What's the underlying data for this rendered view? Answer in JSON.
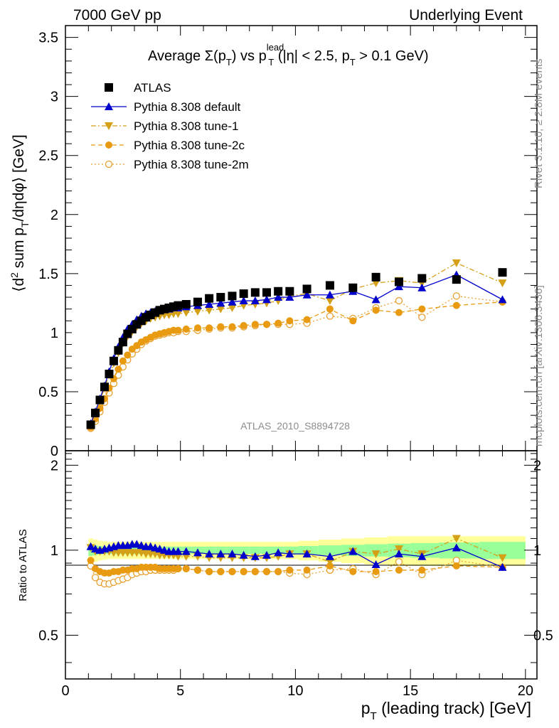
{
  "header": {
    "left": "7000 GeV pp",
    "right": "Underlying Event"
  },
  "side_text": {
    "rivet": "Rivet 3.1.10, ≥ 2.8M events",
    "mcplots": "mcplots.cern.ch [arXiv:1306.3436]"
  },
  "chart_data": [
    {
      "type": "scatter",
      "panel": "main",
      "title": "Average Σ(p_T) vs p_T^lead (|η| < 2.5, p_T > 0.1 GeV)",
      "title_parts": {
        "a": "Average ",
        "sigma": "Σ(p",
        "sub1": "T",
        "mid": ") vs p",
        "sup": "lead",
        "sub2": "T",
        "rest": " (|η| < 2.5, p",
        "sub3": "T",
        "end": " > 0.1 GeV)"
      },
      "ylabel": "⟨d² sum p_T/dηdφ⟩ [GeV]",
      "ylabel_parts": {
        "a": "⟨d",
        "sup": "2",
        "b": " sum p",
        "sub": "T",
        "c": "/dηdφ⟩ [GeV]"
      },
      "analysis_label": "ATLAS_2010_S8894728",
      "xlim": [
        0,
        20.5
      ],
      "ylim": [
        0,
        3.6
      ],
      "y_ticks": [
        "0",
        "0.5",
        "1",
        "1.5",
        "2",
        "2.5",
        "3",
        "3.5"
      ],
      "legend_position": "top-left",
      "x": [
        1.1,
        1.3,
        1.5,
        1.7,
        1.9,
        2.1,
        2.3,
        2.5,
        2.7,
        2.9,
        3.1,
        3.3,
        3.5,
        3.7,
        3.9,
        4.1,
        4.3,
        4.5,
        4.7,
        4.9,
        5.25,
        5.75,
        6.25,
        6.75,
        7.25,
        7.75,
        8.25,
        8.75,
        9.25,
        9.75,
        10.5,
        11.5,
        12.5,
        13.5,
        14.5,
        15.5,
        17.0,
        19.0
      ],
      "series": [
        {
          "name": "ATLAS",
          "color": "#000000",
          "marker": "square",
          "line": "none",
          "values": [
            0.22,
            0.32,
            0.43,
            0.54,
            0.65,
            0.76,
            0.85,
            0.92,
            0.99,
            1.03,
            1.07,
            1.1,
            1.13,
            1.15,
            1.17,
            1.19,
            1.2,
            1.21,
            1.22,
            1.23,
            1.24,
            1.26,
            1.29,
            1.3,
            1.31,
            1.33,
            1.34,
            1.34,
            1.35,
            1.35,
            1.37,
            1.4,
            1.38,
            1.47,
            1.43,
            1.46,
            1.45,
            1.51
          ]
        },
        {
          "name": "Pythia 8.308 default",
          "color": "#0000cc",
          "marker": "triangle-up",
          "line": "solid",
          "values": [
            0.23,
            0.33,
            0.44,
            0.55,
            0.67,
            0.78,
            0.88,
            0.96,
            1.03,
            1.07,
            1.11,
            1.14,
            1.16,
            1.17,
            1.18,
            1.19,
            1.2,
            1.2,
            1.21,
            1.21,
            1.22,
            1.23,
            1.24,
            1.25,
            1.26,
            1.27,
            1.27,
            1.28,
            1.3,
            1.3,
            1.32,
            1.32,
            1.35,
            1.28,
            1.39,
            1.38,
            1.49,
            1.28
          ]
        },
        {
          "name": "Pythia 8.308 tune-1",
          "color": "#d4a017",
          "marker": "triangle-down",
          "line": "dashdot",
          "values": [
            0.22,
            0.31,
            0.42,
            0.53,
            0.64,
            0.74,
            0.83,
            0.91,
            0.97,
            1.01,
            1.05,
            1.08,
            1.1,
            1.12,
            1.13,
            1.14,
            1.15,
            1.15,
            1.16,
            1.16,
            1.17,
            1.18,
            1.19,
            1.2,
            1.21,
            1.23,
            1.24,
            1.25,
            1.27,
            1.31,
            1.33,
            1.27,
            1.37,
            1.42,
            1.44,
            1.42,
            1.59,
            1.42
          ]
        },
        {
          "name": "Pythia 8.308 tune-2c",
          "color": "#e89a10",
          "marker": "circle",
          "line": "dashed",
          "values": [
            0.2,
            0.27,
            0.36,
            0.44,
            0.53,
            0.61,
            0.69,
            0.76,
            0.81,
            0.86,
            0.89,
            0.92,
            0.94,
            0.96,
            0.98,
            0.99,
            1.0,
            1.01,
            1.02,
            1.02,
            1.03,
            1.04,
            1.04,
            1.05,
            1.05,
            1.06,
            1.07,
            1.07,
            1.08,
            1.1,
            1.11,
            1.2,
            1.1,
            1.19,
            1.17,
            1.2,
            1.23,
            1.26
          ]
        },
        {
          "name": "Pythia 8.308 tune-2m",
          "color": "#e8a030",
          "marker": "circle-open",
          "line": "dotted",
          "values": [
            0.19,
            0.25,
            0.33,
            0.41,
            0.49,
            0.57,
            0.64,
            0.71,
            0.77,
            0.82,
            0.86,
            0.9,
            0.93,
            0.95,
            0.97,
            0.98,
            0.99,
            1.0,
            1.0,
            1.01,
            1.01,
            1.02,
            1.03,
            1.04,
            1.04,
            1.05,
            1.06,
            1.07,
            1.07,
            1.07,
            1.08,
            1.14,
            1.12,
            1.21,
            1.27,
            1.13,
            1.31,
            1.26
          ]
        }
      ]
    },
    {
      "type": "scatter",
      "panel": "ratio",
      "ylabel": "Ratio to ATLAS",
      "xlabel": "p_T (leading track) [GeV]",
      "xlabel_parts": {
        "a": "p",
        "sub": "T",
        "b": " (leading track) [GeV]"
      },
      "xlim": [
        0,
        20.5
      ],
      "ylim": [
        0.35,
        2.25
      ],
      "y_ticks": [
        "0.5",
        "1",
        "2"
      ],
      "x_ticks": [
        "0",
        "5",
        "10",
        "15",
        "20"
      ],
      "x": [
        1.1,
        1.3,
        1.5,
        1.7,
        1.9,
        2.1,
        2.3,
        2.5,
        2.7,
        2.9,
        3.1,
        3.3,
        3.5,
        3.7,
        3.9,
        4.1,
        4.3,
        4.5,
        4.7,
        4.9,
        5.25,
        5.75,
        6.25,
        6.75,
        7.25,
        7.75,
        8.25,
        8.75,
        9.25,
        9.75,
        10.5,
        11.5,
        12.5,
        13.5,
        14.5,
        15.5,
        17.0,
        19.0
      ],
      "series": [
        {
          "name": "Pythia 8.308 default",
          "color": "#0000cc",
          "marker": "triangle-up",
          "line": "solid",
          "values": [
            1.03,
            1.01,
            1.0,
            1.01,
            1.02,
            1.03,
            1.04,
            1.04,
            1.04,
            1.05,
            1.05,
            1.04,
            1.03,
            1.03,
            1.02,
            1.01,
            1.0,
            0.99,
            0.99,
            0.99,
            0.99,
            0.98,
            0.97,
            0.97,
            0.97,
            0.96,
            0.95,
            0.96,
            0.98,
            0.97,
            0.97,
            0.95,
            0.99,
            0.89,
            0.97,
            0.95,
            1.02,
            0.87
          ]
        },
        {
          "name": "Pythia 8.308 tune-1",
          "color": "#d4a017",
          "marker": "triangle-down",
          "line": "dashdot",
          "values": [
            1.02,
            0.99,
            0.99,
            0.99,
            0.99,
            0.98,
            0.98,
            0.98,
            0.98,
            0.98,
            0.98,
            0.98,
            0.97,
            0.97,
            0.97,
            0.96,
            0.96,
            0.96,
            0.96,
            0.95,
            0.95,
            0.95,
            0.94,
            0.94,
            0.94,
            0.94,
            0.94,
            0.94,
            0.95,
            0.97,
            0.97,
            0.91,
            0.99,
            0.97,
            1.01,
            0.97,
            1.1,
            0.94
          ]
        },
        {
          "name": "Pythia 8.308 tune-2c",
          "color": "#e89a10",
          "marker": "circle",
          "line": "dashed",
          "values": [
            0.92,
            0.86,
            0.84,
            0.83,
            0.83,
            0.84,
            0.84,
            0.85,
            0.85,
            0.86,
            0.86,
            0.87,
            0.87,
            0.87,
            0.87,
            0.86,
            0.86,
            0.86,
            0.86,
            0.86,
            0.86,
            0.85,
            0.84,
            0.84,
            0.84,
            0.84,
            0.84,
            0.84,
            0.84,
            0.85,
            0.85,
            0.88,
            0.84,
            0.84,
            0.85,
            0.85,
            0.88,
            0.87
          ]
        },
        {
          "name": "Pythia 8.308 tune-2m",
          "color": "#e8a030",
          "marker": "circle-open",
          "line": "dotted",
          "values": [
            0.88,
            0.8,
            0.77,
            0.76,
            0.76,
            0.77,
            0.78,
            0.79,
            0.8,
            0.82,
            0.83,
            0.84,
            0.84,
            0.85,
            0.85,
            0.85,
            0.85,
            0.85,
            0.85,
            0.86,
            0.86,
            0.85,
            0.84,
            0.84,
            0.84,
            0.84,
            0.84,
            0.84,
            0.84,
            0.83,
            0.82,
            0.85,
            0.86,
            0.82,
            0.91,
            0.82,
            0.92,
            0.87
          ]
        }
      ],
      "band_inner_halfwidth": [
        0.045,
        0.04,
        0.035,
        0.03,
        0.03,
        0.03,
        0.03,
        0.03,
        0.03,
        0.03,
        0.03,
        0.03,
        0.03,
        0.03,
        0.03,
        0.03,
        0.03,
        0.03,
        0.03,
        0.03,
        0.03,
        0.03,
        0.03,
        0.03,
        0.03,
        0.03,
        0.03,
        0.03,
        0.03,
        0.03,
        0.035,
        0.04,
        0.045,
        0.05,
        0.055,
        0.06,
        0.065,
        0.07
      ],
      "band_outer_halfwidth": [
        0.1,
        0.09,
        0.08,
        0.075,
        0.07,
        0.07,
        0.07,
        0.07,
        0.07,
        0.07,
        0.07,
        0.07,
        0.07,
        0.07,
        0.07,
        0.07,
        0.07,
        0.07,
        0.07,
        0.07,
        0.07,
        0.07,
        0.07,
        0.07,
        0.07,
        0.07,
        0.07,
        0.07,
        0.07,
        0.07,
        0.08,
        0.09,
        0.1,
        0.11,
        0.12,
        0.12,
        0.12,
        0.12
      ]
    }
  ]
}
